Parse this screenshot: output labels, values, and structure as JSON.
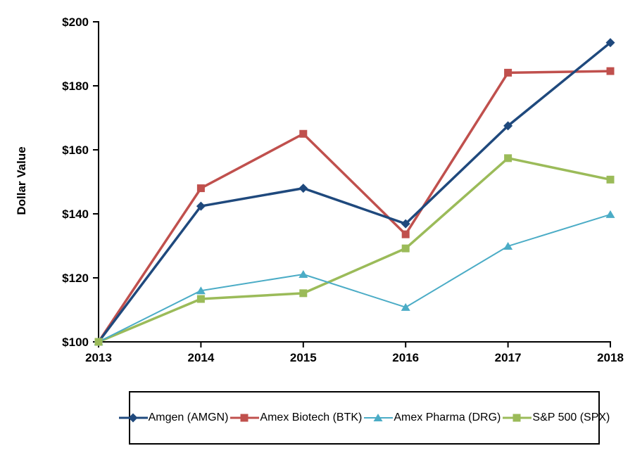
{
  "chart_data": {
    "type": "line",
    "ylabel": "Dollar Value",
    "x_labels": [
      "2013",
      "2014",
      "2015",
      "2016",
      "2017",
      "2018"
    ],
    "y_tick_labels": [
      "$100",
      "$120",
      "$140",
      "$160",
      "$180",
      "$200"
    ],
    "y_tick_values": [
      100,
      120,
      140,
      160,
      180,
      200
    ],
    "ylim": [
      100,
      200
    ],
    "grid": false,
    "legend_position": "bottom",
    "axis_color": "#000000",
    "series": [
      {
        "name": "Amgen (AMGN)",
        "marker": "diamond",
        "color": "#1F497D",
        "line_width": 3.5,
        "values": [
          100,
          142.4,
          148.0,
          136.9,
          167.5,
          193.5
        ]
      },
      {
        "name": "Amex Biotech (BTK)",
        "marker": "square",
        "color": "#C0504D",
        "line_width": 3.5,
        "values": [
          100,
          148.0,
          165.0,
          133.6,
          184.1,
          184.6
        ]
      },
      {
        "name": "Amex Pharma (DRG)",
        "marker": "triangle",
        "color": "#4BACC6",
        "line_width": 2,
        "values": [
          100,
          116.0,
          121.1,
          110.8,
          129.9,
          139.8
        ]
      },
      {
        "name": "S&P 500 (SPX)",
        "marker": "square",
        "color": "#9BBB59",
        "line_width": 3.5,
        "values": [
          100,
          113.4,
          115.2,
          129.2,
          157.4,
          150.7
        ]
      }
    ]
  }
}
